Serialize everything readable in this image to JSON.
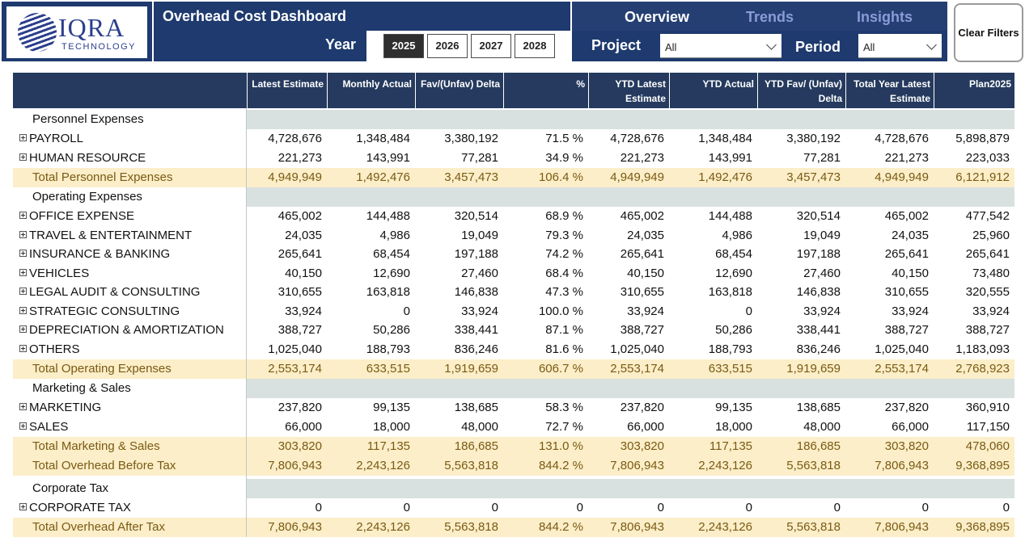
{
  "brand": {
    "name": "IQRA",
    "tagline": "TECHNOLOGY"
  },
  "title": "Overhead Cost Dashboard",
  "nav": {
    "overview": "Overview",
    "trends": "Trends",
    "insights": "Insights"
  },
  "filters": {
    "year_label": "Year",
    "years": [
      "2025",
      "2026",
      "2027",
      "2028"
    ],
    "selected_year": "2025",
    "project_label": "Project",
    "project_value": "All",
    "period_label": "Period",
    "period_value": "All",
    "clear_label": "Clear Filters"
  },
  "table": {
    "headers": [
      "Latest Estimate",
      "Monthly Actual",
      "Fav/(Unfav) Delta",
      "%",
      "YTD Latest Estimate",
      "YTD Actual",
      "YTD Fav/ (Unfav) Delta",
      "Total Year Latest Estimate",
      "Plan2025"
    ],
    "rows": [
      {
        "type": "section",
        "name": "Personnel Expenses"
      },
      {
        "type": "item",
        "name": "PAYROLL",
        "v": [
          "4,728,676",
          "1,348,484",
          "3,380,192",
          "71.5 %",
          "4,728,676",
          "1,348,484",
          "3,380,192",
          "4,728,676",
          "5,898,879"
        ]
      },
      {
        "type": "item",
        "name": "HUMAN RESOURCE",
        "v": [
          "221,273",
          "143,991",
          "77,281",
          "34.9 %",
          "221,273",
          "143,991",
          "77,281",
          "221,273",
          "223,033"
        ]
      },
      {
        "type": "total",
        "name": "Total Personnel Expenses",
        "v": [
          "4,949,949",
          "1,492,476",
          "3,457,473",
          "106.4 %",
          "4,949,949",
          "1,492,476",
          "3,457,473",
          "4,949,949",
          "6,121,912"
        ]
      },
      {
        "type": "section",
        "name": "Operating Expenses"
      },
      {
        "type": "item",
        "name": "OFFICE EXPENSE",
        "v": [
          "465,002",
          "144,488",
          "320,514",
          "68.9 %",
          "465,002",
          "144,488",
          "320,514",
          "465,002",
          "477,542"
        ]
      },
      {
        "type": "item",
        "name": "TRAVEL & ENTERTAINMENT",
        "v": [
          "24,035",
          "4,986",
          "19,049",
          "79.3 %",
          "24,035",
          "4,986",
          "19,049",
          "24,035",
          "25,960"
        ]
      },
      {
        "type": "item",
        "name": "INSURANCE & BANKING",
        "v": [
          "265,641",
          "68,454",
          "197,188",
          "74.2 %",
          "265,641",
          "68,454",
          "197,188",
          "265,641",
          "265,641"
        ]
      },
      {
        "type": "item",
        "name": "VEHICLES",
        "v": [
          "40,150",
          "12,690",
          "27,460",
          "68.4 %",
          "40,150",
          "12,690",
          "27,460",
          "40,150",
          "73,480"
        ]
      },
      {
        "type": "item",
        "name": "LEGAL AUDIT & CONSULTING",
        "v": [
          "310,655",
          "163,818",
          "146,838",
          "47.3 %",
          "310,655",
          "163,818",
          "146,838",
          "310,655",
          "320,555"
        ]
      },
      {
        "type": "item",
        "name": "STRATEGIC CONSULTING",
        "v": [
          "33,924",
          "0",
          "33,924",
          "100.0 %",
          "33,924",
          "0",
          "33,924",
          "33,924",
          "33,924"
        ]
      },
      {
        "type": "item",
        "name": "DEPRECIATION & AMORTIZATION",
        "v": [
          "388,727",
          "50,286",
          "338,441",
          "87.1 %",
          "388,727",
          "50,286",
          "338,441",
          "388,727",
          "388,727"
        ]
      },
      {
        "type": "item",
        "name": "OTHERS",
        "v": [
          "1,025,040",
          "188,793",
          "836,246",
          "81.6 %",
          "1,025,040",
          "188,793",
          "836,246",
          "1,025,040",
          "1,183,093"
        ]
      },
      {
        "type": "total",
        "name": "Total Operating Expenses",
        "v": [
          "2,553,174",
          "633,515",
          "1,919,659",
          "606.7 %",
          "2,553,174",
          "633,515",
          "1,919,659",
          "2,553,174",
          "2,768,923"
        ]
      },
      {
        "type": "section",
        "name": "Marketing & Sales"
      },
      {
        "type": "item",
        "name": "MARKETING",
        "v": [
          "237,820",
          "99,135",
          "138,685",
          "58.3 %",
          "237,820",
          "99,135",
          "138,685",
          "237,820",
          "360,910"
        ]
      },
      {
        "type": "item",
        "name": "SALES",
        "v": [
          "66,000",
          "18,000",
          "48,000",
          "72.7 %",
          "66,000",
          "18,000",
          "48,000",
          "66,000",
          "117,150"
        ]
      },
      {
        "type": "total",
        "name": "Total Marketing & Sales",
        "v": [
          "303,820",
          "117,135",
          "186,685",
          "131.0 %",
          "303,820",
          "117,135",
          "186,685",
          "303,820",
          "478,060"
        ]
      },
      {
        "type": "total",
        "name": "Total Overhead Before Tax",
        "v": [
          "7,806,943",
          "2,243,126",
          "5,563,818",
          "844.2 %",
          "7,806,943",
          "2,243,126",
          "5,563,818",
          "7,806,943",
          "9,368,895"
        ]
      },
      {
        "type": "section",
        "name": "Corporate Tax"
      },
      {
        "type": "item",
        "name": "CORPORATE TAX",
        "v": [
          "0",
          "0",
          "0",
          "0",
          "0",
          "0",
          "0",
          "0",
          "0"
        ]
      },
      {
        "type": "total",
        "name": "Total Overhead After Tax",
        "v": [
          "7,806,943",
          "2,243,126",
          "5,563,818",
          "844.2 %",
          "7,806,943",
          "2,243,126",
          "5,563,818",
          "7,806,943",
          "9,368,895"
        ]
      }
    ]
  }
}
